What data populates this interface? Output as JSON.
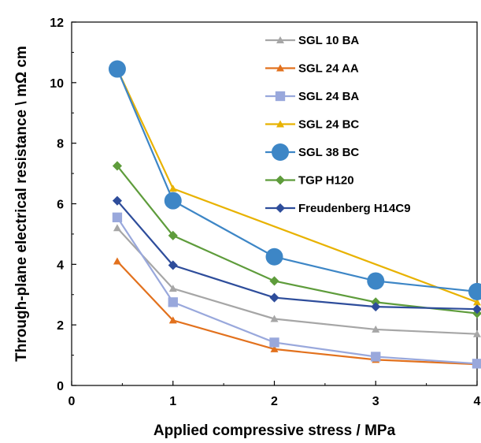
{
  "chart_data": {
    "type": "line",
    "xlabel": "Applied compressive stress / MPa",
    "ylabel": "Through-plane electrical resistance \\ mΩ cm",
    "xlim": [
      0,
      4
    ],
    "ylim": [
      0,
      12
    ],
    "xticks": [
      "0",
      "1",
      "2",
      "3",
      "4"
    ],
    "yticks": [
      "0",
      "2",
      "4",
      "6",
      "8",
      "10",
      "12"
    ],
    "grid": false,
    "legend_position": "top-right",
    "series": [
      {
        "name": "SGL 10 BA",
        "color": "#a6a6a6",
        "marker": "triangle",
        "x": [
          0.45,
          1.0,
          2.0,
          3.0,
          4.0
        ],
        "y": [
          5.2,
          3.2,
          2.2,
          1.85,
          1.7
        ]
      },
      {
        "name": "SGL 24 AA",
        "color": "#e2711d",
        "marker": "triangle",
        "x": [
          0.45,
          1.0,
          2.0,
          3.0,
          4.0
        ],
        "y": [
          4.1,
          2.15,
          1.2,
          0.85,
          0.7
        ]
      },
      {
        "name": "SGL 24 BA",
        "color": "#99a8dc",
        "marker": "square",
        "x": [
          0.45,
          1.0,
          2.0,
          3.0,
          4.0
        ],
        "y": [
          5.55,
          2.75,
          1.42,
          0.95,
          0.72
        ]
      },
      {
        "name": "SGL 24 BC",
        "color": "#e8b200",
        "marker": "triangle",
        "x": [
          0.45,
          1.0,
          4.0
        ],
        "y": [
          10.45,
          6.5,
          2.75
        ]
      },
      {
        "name": "SGL 38 BC",
        "color": "#3d86c6",
        "marker": "circle",
        "x": [
          0.45,
          1.0,
          2.0,
          3.0,
          4.0
        ],
        "y": [
          10.45,
          6.1,
          4.25,
          3.45,
          3.1
        ]
      },
      {
        "name": "TGP H120",
        "color": "#5e9c3b",
        "marker": "diamond",
        "x": [
          0.45,
          1.0,
          2.0,
          3.0,
          4.0
        ],
        "y": [
          7.25,
          4.95,
          3.45,
          2.75,
          2.38
        ]
      },
      {
        "name": "Freudenberg H14C9",
        "color": "#2e4d9b",
        "marker": "diamond",
        "x": [
          0.45,
          1.0,
          2.0,
          3.0,
          4.0
        ],
        "y": [
          6.1,
          3.97,
          2.9,
          2.6,
          2.52
        ]
      }
    ]
  }
}
